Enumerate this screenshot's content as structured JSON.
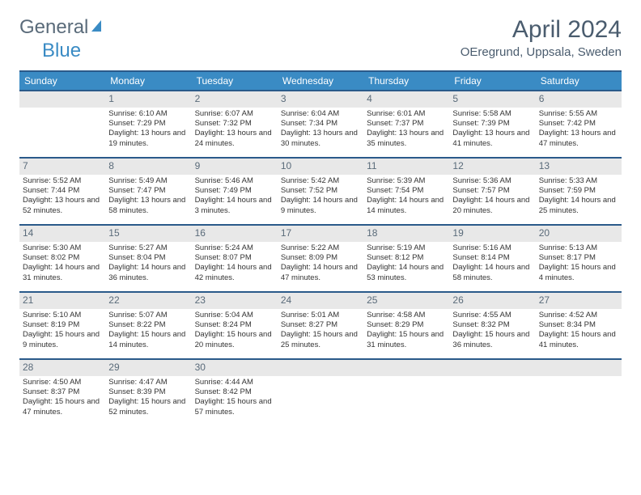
{
  "brand": {
    "part1": "General",
    "part2": "Blue"
  },
  "title": "April 2024",
  "location": "OEregrund, Uppsala, Sweden",
  "header_bg": "#3a8bc4",
  "border_color": "#2a5a8a",
  "daynum_bg": "#e8e8e8",
  "weekdays": [
    "Sunday",
    "Monday",
    "Tuesday",
    "Wednesday",
    "Thursday",
    "Friday",
    "Saturday"
  ],
  "weeks": [
    [
      null,
      {
        "n": "1",
        "sr": "6:10 AM",
        "ss": "7:29 PM",
        "dl": "13 hours and 19 minutes."
      },
      {
        "n": "2",
        "sr": "6:07 AM",
        "ss": "7:32 PM",
        "dl": "13 hours and 24 minutes."
      },
      {
        "n": "3",
        "sr": "6:04 AM",
        "ss": "7:34 PM",
        "dl": "13 hours and 30 minutes."
      },
      {
        "n": "4",
        "sr": "6:01 AM",
        "ss": "7:37 PM",
        "dl": "13 hours and 35 minutes."
      },
      {
        "n": "5",
        "sr": "5:58 AM",
        "ss": "7:39 PM",
        "dl": "13 hours and 41 minutes."
      },
      {
        "n": "6",
        "sr": "5:55 AM",
        "ss": "7:42 PM",
        "dl": "13 hours and 47 minutes."
      }
    ],
    [
      {
        "n": "7",
        "sr": "5:52 AM",
        "ss": "7:44 PM",
        "dl": "13 hours and 52 minutes."
      },
      {
        "n": "8",
        "sr": "5:49 AM",
        "ss": "7:47 PM",
        "dl": "13 hours and 58 minutes."
      },
      {
        "n": "9",
        "sr": "5:46 AM",
        "ss": "7:49 PM",
        "dl": "14 hours and 3 minutes."
      },
      {
        "n": "10",
        "sr": "5:42 AM",
        "ss": "7:52 PM",
        "dl": "14 hours and 9 minutes."
      },
      {
        "n": "11",
        "sr": "5:39 AM",
        "ss": "7:54 PM",
        "dl": "14 hours and 14 minutes."
      },
      {
        "n": "12",
        "sr": "5:36 AM",
        "ss": "7:57 PM",
        "dl": "14 hours and 20 minutes."
      },
      {
        "n": "13",
        "sr": "5:33 AM",
        "ss": "7:59 PM",
        "dl": "14 hours and 25 minutes."
      }
    ],
    [
      {
        "n": "14",
        "sr": "5:30 AM",
        "ss": "8:02 PM",
        "dl": "14 hours and 31 minutes."
      },
      {
        "n": "15",
        "sr": "5:27 AM",
        "ss": "8:04 PM",
        "dl": "14 hours and 36 minutes."
      },
      {
        "n": "16",
        "sr": "5:24 AM",
        "ss": "8:07 PM",
        "dl": "14 hours and 42 minutes."
      },
      {
        "n": "17",
        "sr": "5:22 AM",
        "ss": "8:09 PM",
        "dl": "14 hours and 47 minutes."
      },
      {
        "n": "18",
        "sr": "5:19 AM",
        "ss": "8:12 PM",
        "dl": "14 hours and 53 minutes."
      },
      {
        "n": "19",
        "sr": "5:16 AM",
        "ss": "8:14 PM",
        "dl": "14 hours and 58 minutes."
      },
      {
        "n": "20",
        "sr": "5:13 AM",
        "ss": "8:17 PM",
        "dl": "15 hours and 4 minutes."
      }
    ],
    [
      {
        "n": "21",
        "sr": "5:10 AM",
        "ss": "8:19 PM",
        "dl": "15 hours and 9 minutes."
      },
      {
        "n": "22",
        "sr": "5:07 AM",
        "ss": "8:22 PM",
        "dl": "15 hours and 14 minutes."
      },
      {
        "n": "23",
        "sr": "5:04 AM",
        "ss": "8:24 PM",
        "dl": "15 hours and 20 minutes."
      },
      {
        "n": "24",
        "sr": "5:01 AM",
        "ss": "8:27 PM",
        "dl": "15 hours and 25 minutes."
      },
      {
        "n": "25",
        "sr": "4:58 AM",
        "ss": "8:29 PM",
        "dl": "15 hours and 31 minutes."
      },
      {
        "n": "26",
        "sr": "4:55 AM",
        "ss": "8:32 PM",
        "dl": "15 hours and 36 minutes."
      },
      {
        "n": "27",
        "sr": "4:52 AM",
        "ss": "8:34 PM",
        "dl": "15 hours and 41 minutes."
      }
    ],
    [
      {
        "n": "28",
        "sr": "4:50 AM",
        "ss": "8:37 PM",
        "dl": "15 hours and 47 minutes."
      },
      {
        "n": "29",
        "sr": "4:47 AM",
        "ss": "8:39 PM",
        "dl": "15 hours and 52 minutes."
      },
      {
        "n": "30",
        "sr": "4:44 AM",
        "ss": "8:42 PM",
        "dl": "15 hours and 57 minutes."
      },
      null,
      null,
      null,
      null
    ]
  ],
  "labels": {
    "sunrise": "Sunrise:",
    "sunset": "Sunset:",
    "daylight": "Daylight:"
  }
}
